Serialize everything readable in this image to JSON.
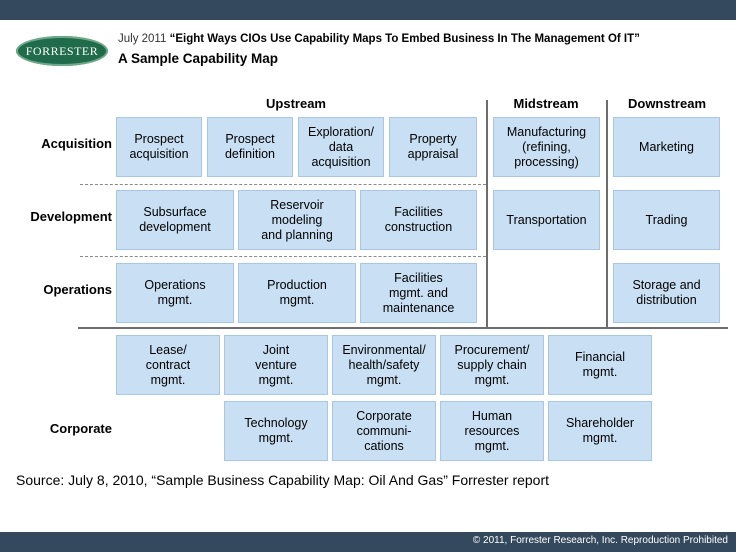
{
  "header": {
    "brand": "FORRESTER",
    "date_prefix": "July 2011",
    "report_title": "“Eight Ways CIOs Use Capability Maps To Embed Business In The Management Of IT”",
    "subtitle": "A Sample Capability Map"
  },
  "columns": {
    "upstream": "Upstream",
    "midstream": "Midstream",
    "downstream": "Downstream"
  },
  "rows": {
    "acquisition": "Acquisition",
    "development": "Development",
    "operations": "Operations",
    "corporate": "Corporate"
  },
  "cells": {
    "prospect_acquisition": "Prospect\nacquisition",
    "prospect_definition": "Prospect\ndefinition",
    "exploration": "Exploration/\ndata\nacquisition",
    "property_appraisal": "Property\nappraisal",
    "manufacturing": "Manufacturing\n(refining,\nprocessing)",
    "marketing": "Marketing",
    "subsurface": "Subsurface\ndevelopment",
    "reservoir": "Reservoir\nmodeling\nand planning",
    "facilities_construction": "Facilities\nconstruction",
    "transportation": "Transportation",
    "trading": "Trading",
    "operations_mgmt": "Operations\nmgmt.",
    "production_mgmt": "Production\nmgmt.",
    "facilities_mgmt": "Facilities\nmgmt. and\nmaintenance",
    "storage": "Storage and\ndistribution",
    "lease": "Lease/\ncontract\nmgmt.",
    "joint_venture": "Joint\nventure\nmgmt.",
    "environmental": "Environmental/\nhealth/safety\nmgmt.",
    "procurement": "Procurement/\nsupply chain\nmgmt.",
    "financial": "Financial\nmgmt.",
    "technology": "Technology\nmgmt.",
    "corporate_comms": "Corporate\ncommuni-\ncations",
    "human_resources": "Human\nresources\nmgmt.",
    "shareholder": "Shareholder\nmgmt."
  },
  "footer": {
    "source": "Source: July 8, 2010, “Sample Business Capability Map: Oil And Gas” Forrester report",
    "copyright": "© 2011, Forrester Research, Inc. Reproduction Prohibited"
  }
}
